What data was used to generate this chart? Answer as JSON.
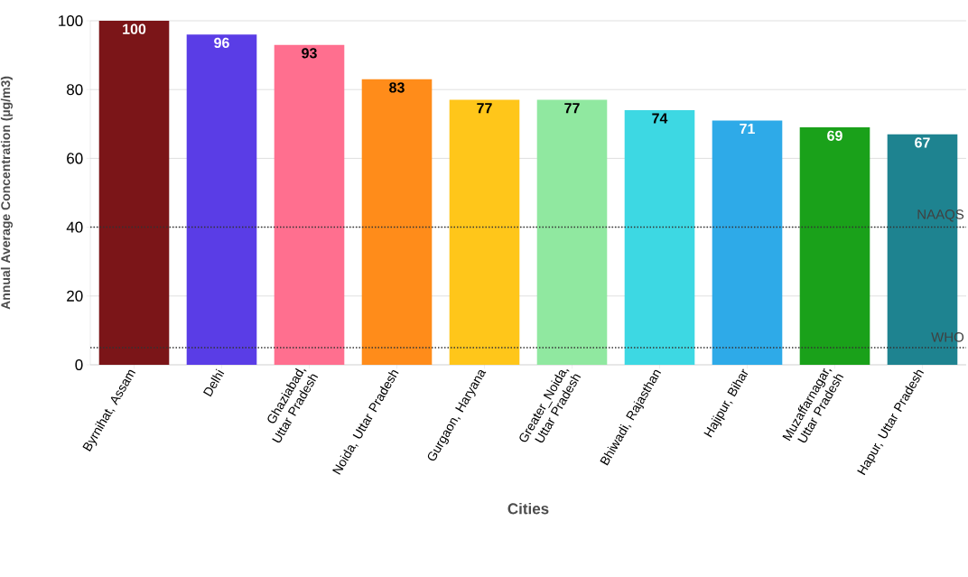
{
  "chart_data": {
    "type": "bar",
    "xlabel": "Cities",
    "ylabel": "Annual Average Concentration (µg/m3)",
    "categories": [
      "Byrnihat, Assam",
      "Delhi",
      "Ghaziabad, Uttar Pradesh",
      "Noida, Uttar Pradesh",
      "Gurgaon, Haryana",
      "Greater_Noida, Uttar Pradesh",
      "Bhiwadi, Rajasthan",
      "Hajipur, Bihar",
      "Muzaffarnagar, Uttar Pradesh",
      "Hapur, Uttar Pradesh"
    ],
    "values": [
      100,
      96,
      93,
      83,
      77,
      77,
      74,
      71,
      69,
      67
    ],
    "colors": [
      "#7b1518",
      "#5a3de6",
      "#ff6f8f",
      "#ff8c1a",
      "#ffc61a",
      "#90e8a0",
      "#3dd8e3",
      "#2eaae8",
      "#1aa11a",
      "#1e8390"
    ],
    "data_labels": true,
    "ylim": [
      0,
      100
    ],
    "yticks": [
      0,
      20,
      40,
      60,
      80,
      100
    ],
    "grid": "y",
    "ref_lines": [
      {
        "axis": "y",
        "value": 40,
        "label": "NAAQS",
        "line_style": "dotted"
      },
      {
        "axis": "y",
        "value": 5,
        "label": "WHO",
        "line_style": "dotted"
      }
    ]
  }
}
